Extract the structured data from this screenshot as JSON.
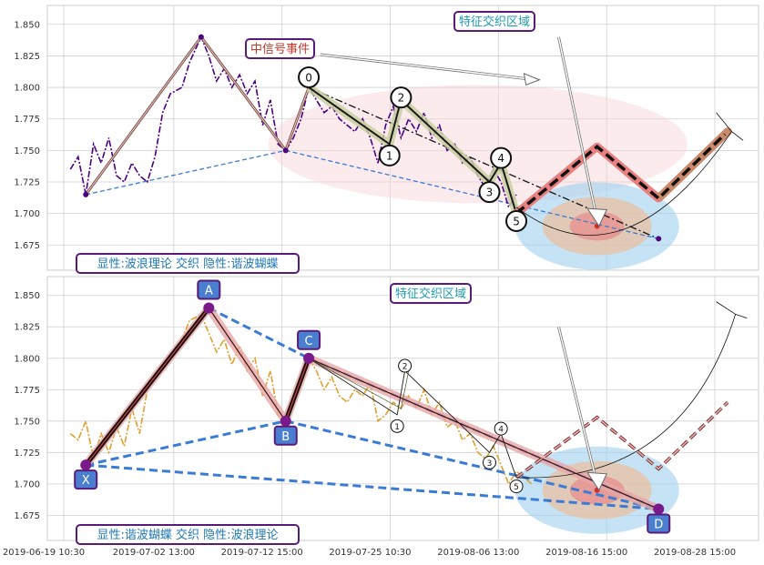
{
  "chart_data": {
    "type": "line",
    "x_ticks": [
      "2019-06-19 10:30",
      "2019-07-02 13:00",
      "2019-07-12 15:00",
      "2019-07-25 10:30",
      "2019-08-06 13:00",
      "2019-08-16 15:00",
      "2019-08-28 15:00"
    ],
    "panels": [
      {
        "id": "top",
        "caption": "显性:波浪理论 交织 隐性:谐波蝴蝶",
        "annotations": {
          "event": "中信号事件",
          "zone": "特征交织区域"
        },
        "ylim": [
          1.655,
          1.865
        ],
        "y_ticks": [
          1.675,
          1.7,
          1.725,
          1.75,
          1.775,
          1.8,
          1.825,
          1.85
        ],
        "price_series": {
          "color": "#4b0082",
          "style": "dashdot",
          "points": [
            [
              6,
              1.735
            ],
            [
              8,
              1.745
            ],
            [
              10,
              1.715
            ],
            [
              12,
              1.755
            ],
            [
              14,
              1.74
            ],
            [
              16,
              1.76
            ],
            [
              18,
              1.73
            ],
            [
              20,
              1.725
            ],
            [
              22,
              1.74
            ],
            [
              24,
              1.73
            ],
            [
              26,
              1.725
            ],
            [
              28,
              1.745
            ],
            [
              30,
              1.78
            ],
            [
              32,
              1.795
            ],
            [
              35,
              1.8
            ],
            [
              37,
              1.82
            ],
            [
              40,
              1.84
            ],
            [
              42,
              1.825
            ],
            [
              44,
              1.805
            ],
            [
              46,
              1.815
            ],
            [
              48,
              1.8
            ],
            [
              50,
              1.81
            ],
            [
              52,
              1.795
            ],
            [
              54,
              1.805
            ],
            [
              56,
              1.77
            ],
            [
              58,
              1.79
            ],
            [
              60,
              1.755
            ],
            [
              62,
              1.75
            ],
            [
              64,
              1.76
            ],
            [
              66,
              1.775
            ],
            [
              68,
              1.8
            ],
            [
              70,
              1.79
            ],
            [
              72,
              1.78
            ],
            [
              74,
              1.785
            ],
            [
              76,
              1.775
            ],
            [
              78,
              1.77
            ],
            [
              80,
              1.765
            ],
            [
              82,
              1.775
            ],
            [
              84,
              1.76
            ],
            [
              86,
              1.74
            ],
            [
              88,
              1.77
            ],
            [
              90,
              1.785
            ],
            [
              92,
              1.76
            ],
            [
              94,
              1.775
            ],
            [
              96,
              1.765
            ],
            [
              98,
              1.78
            ],
            [
              100,
              1.76
            ],
            [
              102,
              1.77
            ],
            [
              104,
              1.75
            ],
            [
              106,
              1.755
            ],
            [
              108,
              1.74
            ],
            [
              110,
              1.745
            ],
            [
              112,
              1.73
            ],
            [
              114,
              1.72
            ],
            [
              116,
              1.735
            ],
            [
              118,
              1.725
            ],
            [
              120,
              1.705
            ],
            [
              122,
              1.715
            ]
          ]
        },
        "harmonic_lines": [
          {
            "color": "#8b5a52",
            "points": [
              [
                10,
                1.715
              ],
              [
                40,
                1.84
              ],
              [
                62,
                1.75
              ],
              [
                68,
                1.8
              ]
            ]
          }
        ],
        "wave_labels": [
          {
            "label": "0",
            "x": 68,
            "y": 1.808
          },
          {
            "label": "1",
            "x": 89,
            "y": 1.746
          },
          {
            "label": "2",
            "x": 92,
            "y": 1.792
          },
          {
            "label": "3",
            "x": 115,
            "y": 1.717
          },
          {
            "label": "4",
            "x": 118,
            "y": 1.744
          },
          {
            "label": "5",
            "x": 122,
            "y": 1.694
          }
        ],
        "wave_path": [
          [
            68,
            1.8
          ],
          [
            89,
            1.755
          ],
          [
            92,
            1.79
          ],
          [
            115,
            1.725
          ],
          [
            118,
            1.74
          ],
          [
            122,
            1.7
          ]
        ],
        "trend_line": [
          [
            68,
            1.8
          ],
          [
            159,
            1.68
          ]
        ],
        "blue_dashed_lines": [
          [
            [
              10,
              1.715
            ],
            [
              62,
              1.75
            ]
          ],
          [
            [
              62,
              1.75
            ],
            [
              159,
              1.68
            ]
          ]
        ],
        "projection_path": [
          [
            122,
            1.7
          ],
          [
            143,
            1.753
          ],
          [
            159,
            1.712
          ],
          [
            177,
            1.765
          ]
        ],
        "zone_center": [
          143,
          1.69
        ]
      },
      {
        "id": "bottom",
        "caption": "显性:谐波蝴蝶 交织 隐性:波浪理论",
        "annotations": {
          "zone": "特征交织区域"
        },
        "ylim": [
          1.655,
          1.865
        ],
        "y_ticks": [
          1.675,
          1.7,
          1.725,
          1.75,
          1.775,
          1.8,
          1.825,
          1.85
        ],
        "price_series": {
          "color": "#e0a030",
          "style": "dashdot",
          "points": [
            [
              6,
              1.74
            ],
            [
              8,
              1.735
            ],
            [
              10,
              1.75
            ],
            [
              12,
              1.72
            ],
            [
              14,
              1.74
            ],
            [
              16,
              1.725
            ],
            [
              18,
              1.745
            ],
            [
              20,
              1.73
            ],
            [
              22,
              1.76
            ],
            [
              24,
              1.74
            ],
            [
              26,
              1.775
            ],
            [
              28,
              1.785
            ],
            [
              30,
              1.795
            ],
            [
              32,
              1.8
            ],
            [
              35,
              1.815
            ],
            [
              37,
              1.83
            ],
            [
              40,
              1.835
            ],
            [
              42,
              1.82
            ],
            [
              44,
              1.805
            ],
            [
              46,
              1.815
            ],
            [
              48,
              1.795
            ],
            [
              50,
              1.81
            ],
            [
              52,
              1.79
            ],
            [
              54,
              1.8
            ],
            [
              56,
              1.77
            ],
            [
              58,
              1.79
            ],
            [
              60,
              1.755
            ],
            [
              62,
              1.75
            ],
            [
              64,
              1.77
            ],
            [
              66,
              1.78
            ],
            [
              68,
              1.8
            ],
            [
              70,
              1.79
            ],
            [
              72,
              1.775
            ],
            [
              74,
              1.785
            ],
            [
              76,
              1.77
            ],
            [
              78,
              1.765
            ],
            [
              80,
              1.775
            ],
            [
              82,
              1.77
            ],
            [
              84,
              1.78
            ],
            [
              86,
              1.75
            ],
            [
              88,
              1.755
            ],
            [
              90,
              1.765
            ],
            [
              92,
              1.76
            ],
            [
              94,
              1.77
            ],
            [
              96,
              1.76
            ],
            [
              98,
              1.775
            ],
            [
              100,
              1.755
            ],
            [
              102,
              1.765
            ],
            [
              104,
              1.745
            ],
            [
              106,
              1.75
            ],
            [
              108,
              1.735
            ],
            [
              110,
              1.74
            ],
            [
              112,
              1.725
            ],
            [
              114,
              1.72
            ],
            [
              116,
              1.73
            ],
            [
              118,
              1.715
            ],
            [
              120,
              1.7
            ],
            [
              122,
              1.71
            ],
            [
              124,
              1.705
            ],
            [
              126,
              1.7
            ]
          ]
        },
        "harmonic_points": [
          {
            "label": "X",
            "x": 10,
            "y": 1.715
          },
          {
            "label": "A",
            "x": 42,
            "y": 1.84
          },
          {
            "label": "B",
            "x": 62,
            "y": 1.75
          },
          {
            "label": "C",
            "x": 68,
            "y": 1.8
          },
          {
            "label": "D",
            "x": 159,
            "y": 1.68
          }
        ],
        "wave_labels": [
          {
            "label": "1",
            "x": 91,
            "y": 1.746
          },
          {
            "label": "2",
            "x": 93,
            "y": 1.794
          },
          {
            "label": "3",
            "x": 115,
            "y": 1.717
          },
          {
            "label": "4",
            "x": 118,
            "y": 1.744
          },
          {
            "label": "5",
            "x": 122,
            "y": 1.698
          }
        ],
        "wave_path": [
          [
            68,
            1.8
          ],
          [
            91,
            1.755
          ],
          [
            93,
            1.79
          ],
          [
            115,
            1.725
          ],
          [
            118,
            1.74
          ],
          [
            122,
            1.705
          ]
        ],
        "projection_path": [
          [
            122,
            1.705
          ],
          [
            143,
            1.753
          ],
          [
            159,
            1.712
          ],
          [
            177,
            1.765
          ]
        ],
        "zone_center": [
          143,
          1.695
        ]
      }
    ]
  }
}
